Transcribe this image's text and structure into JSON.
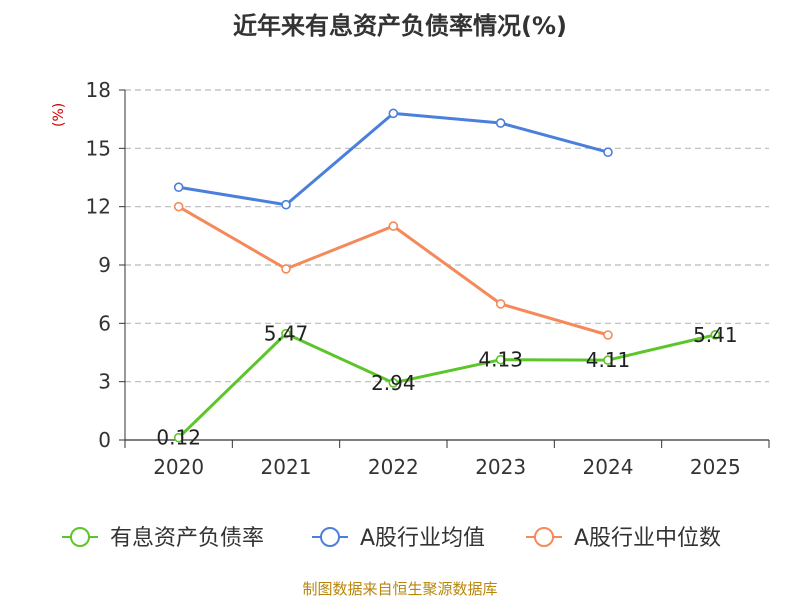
{
  "chart_data": {
    "type": "line",
    "title": "近年来有息资产负债率情况(%)",
    "ylabel": "(%)",
    "xlabel": "",
    "categories": [
      "2020",
      "2021",
      "2022",
      "2023",
      "2024",
      "2025"
    ],
    "ylim": [
      0,
      18
    ],
    "yticks": [
      0,
      3,
      6,
      9,
      12,
      15,
      18
    ],
    "grid": true,
    "legend_position": "bottom",
    "series": [
      {
        "name": "有息资产负债率",
        "color": "#5cc52a",
        "values": [
          0.12,
          5.47,
          2.94,
          4.13,
          4.11,
          5.41
        ],
        "labels": [
          "0.12",
          "5.47",
          "2.94",
          "4.13",
          "4.11",
          "5.41"
        ]
      },
      {
        "name": "A股行业均值",
        "color": "#4a7fdc",
        "values": [
          13.0,
          12.1,
          16.8,
          16.3,
          14.8,
          null
        ],
        "labels": []
      },
      {
        "name": "A股行业中位数",
        "color": "#f5895a",
        "values": [
          12.0,
          8.8,
          11.0,
          7.0,
          5.4,
          null
        ],
        "labels": []
      }
    ]
  },
  "source": "制图数据来自恒生聚源数据库"
}
